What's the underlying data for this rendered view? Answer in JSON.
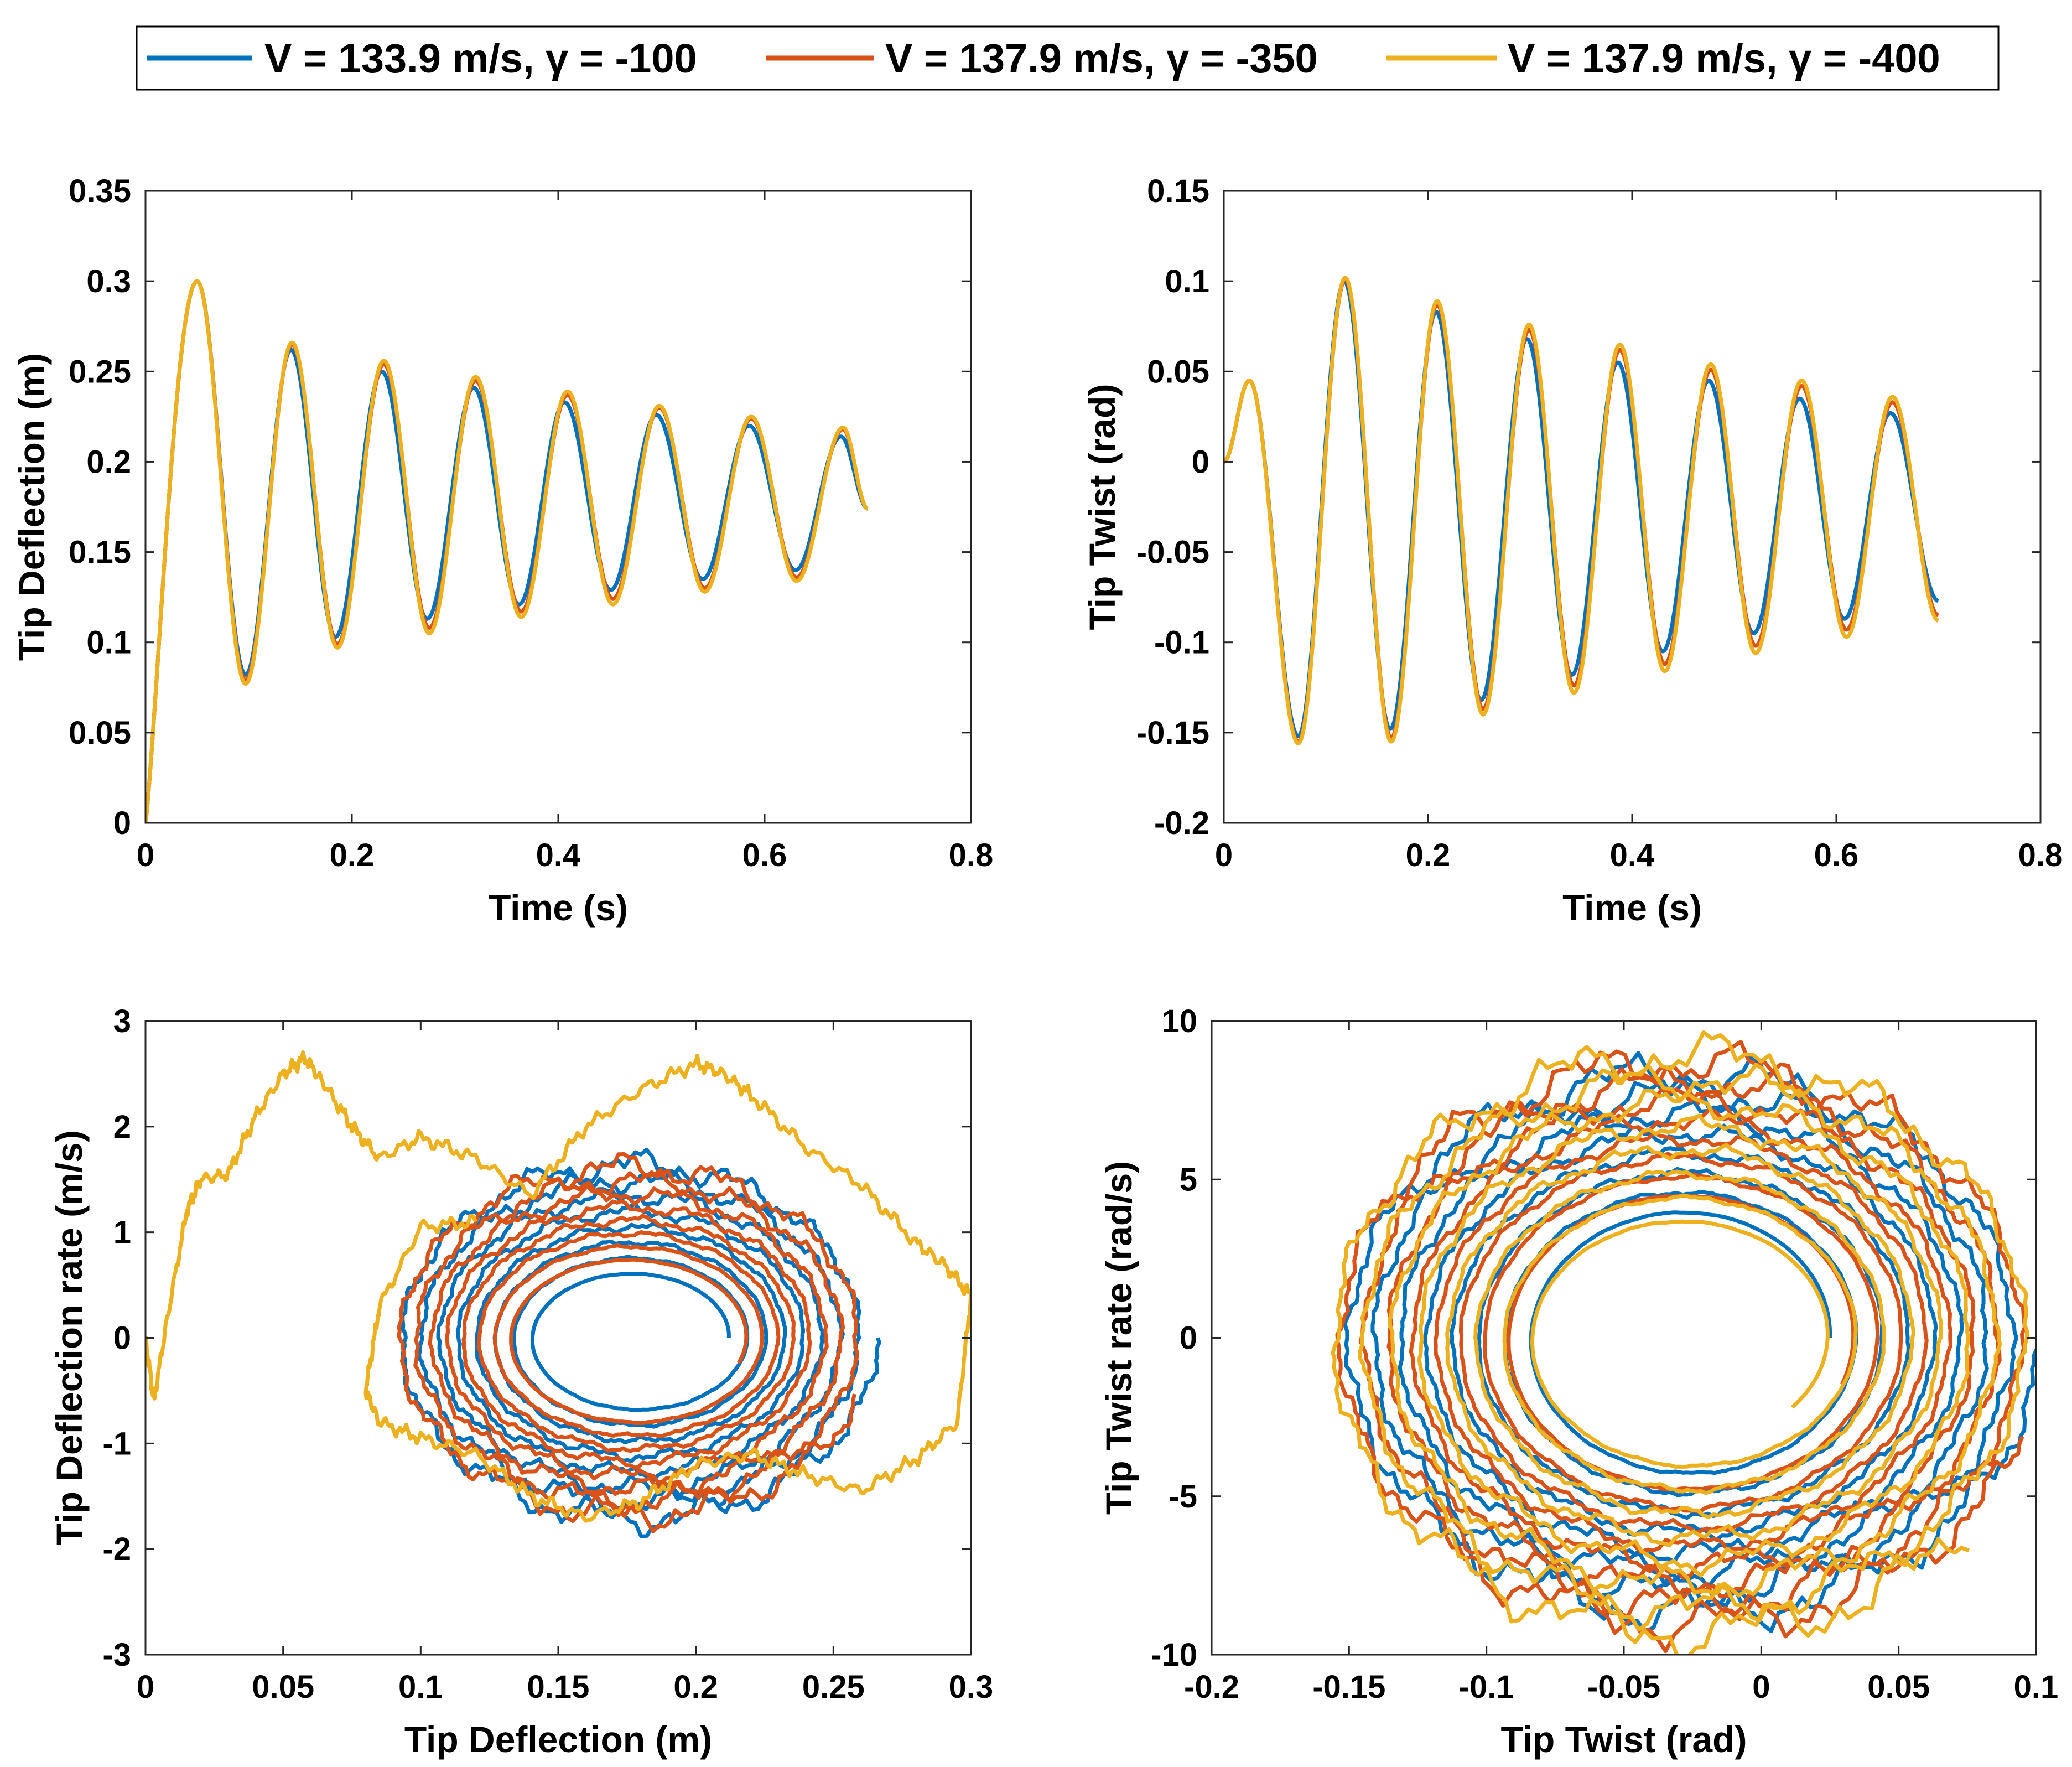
{
  "legend": {
    "entries": [
      {
        "label": "V = 133.9 m/s, γ = -100",
        "color": "#0072BD"
      },
      {
        "label": "V = 137.9 m/s, γ = -350",
        "color": "#D95319"
      },
      {
        "label": "V = 137.9 m/s, γ = -400",
        "color": "#EDB120"
      }
    ]
  },
  "chart_data": [
    {
      "type": "line",
      "title": "",
      "xlabel": "Time (s)",
      "ylabel": "Tip Deflection (m)",
      "xlim": [
        0,
        0.8
      ],
      "ylim": [
        0,
        0.35
      ],
      "xticks": [
        0,
        0.2,
        0.4,
        0.6,
        0.8
      ],
      "yticks": [
        0,
        0.05,
        0.1,
        0.15,
        0.2,
        0.25,
        0.3,
        0.35
      ],
      "xtick_labels": [
        "0",
        "0.2",
        "0.4",
        "0.6",
        "0.8"
      ],
      "ytick_labels": [
        "0",
        "0.05",
        "0.1",
        "0.15",
        "0.2",
        "0.25",
        "0.3",
        "0.35"
      ],
      "grid": false,
      "series": [
        {
          "name": "V = 133.9 m/s, γ = -100",
          "color": "#0072BD",
          "x": [
            0,
            0.05,
            0.097,
            0.141,
            0.184,
            0.229,
            0.273,
            0.318,
            0.362,
            0.406,
            0.451,
            0.495,
            0.54,
            0.585,
            0.63,
            0.674,
            0.7
          ],
          "y": [
            0,
            0.3,
            0.082,
            0.262,
            0.103,
            0.25,
            0.113,
            0.241,
            0.121,
            0.233,
            0.129,
            0.226,
            0.135,
            0.22,
            0.14,
            0.214,
            0.174
          ]
        },
        {
          "name": "V = 137.9 m/s, γ = -350",
          "color": "#D95319",
          "x": [
            0,
            0.05,
            0.097,
            0.142,
            0.186,
            0.231,
            0.275,
            0.32,
            0.364,
            0.409,
            0.453,
            0.498,
            0.542,
            0.587,
            0.631,
            0.676,
            0.7
          ],
          "y": [
            0,
            0.3,
            0.079,
            0.265,
            0.099,
            0.254,
            0.108,
            0.245,
            0.117,
            0.237,
            0.124,
            0.23,
            0.13,
            0.224,
            0.136,
            0.218,
            0.174
          ]
        },
        {
          "name": "V = 137.9 m/s, γ = -400",
          "color": "#EDB120",
          "x": [
            0,
            0.05,
            0.097,
            0.142,
            0.186,
            0.231,
            0.275,
            0.32,
            0.364,
            0.409,
            0.453,
            0.498,
            0.542,
            0.587,
            0.631,
            0.676,
            0.7
          ],
          "y": [
            0,
            0.3,
            0.077,
            0.266,
            0.097,
            0.256,
            0.105,
            0.247,
            0.114,
            0.239,
            0.121,
            0.231,
            0.128,
            0.225,
            0.134,
            0.219,
            0.174
          ]
        }
      ]
    },
    {
      "type": "line",
      "title": "",
      "xlabel": "Time (s)",
      "ylabel": "Tip Twist (rad)",
      "xlim": [
        0,
        0.8
      ],
      "ylim": [
        -0.2,
        0.15
      ],
      "xticks": [
        0,
        0.2,
        0.4,
        0.6,
        0.8
      ],
      "yticks": [
        -0.2,
        -0.15,
        -0.1,
        -0.05,
        0,
        0.05,
        0.1,
        0.15
      ],
      "xtick_labels": [
        "0",
        "0.2",
        "0.4",
        "0.6",
        "0.8"
      ],
      "ytick_labels": [
        "-0.2",
        "-0.15",
        "-0.1",
        "-0.05",
        "0",
        "0.05",
        "0.1",
        "0.15"
      ],
      "grid": false,
      "series": [
        {
          "name": "V = 133.9 m/s, γ = -100",
          "color": "#0072BD",
          "x": [
            0,
            0.025,
            0.073,
            0.118,
            0.163,
            0.208,
            0.252,
            0.297,
            0.341,
            0.386,
            0.43,
            0.475,
            0.519,
            0.564,
            0.608,
            0.653,
            0.7
          ],
          "y": [
            0,
            0.045,
            -0.152,
            0.1,
            -0.148,
            0.083,
            -0.132,
            0.068,
            -0.118,
            0.055,
            -0.105,
            0.045,
            -0.095,
            0.035,
            -0.087,
            0.027,
            -0.077
          ]
        },
        {
          "name": "V = 137.9 m/s, γ = -350",
          "color": "#D95319",
          "x": [
            0,
            0.025,
            0.073,
            0.119,
            0.164,
            0.209,
            0.254,
            0.299,
            0.343,
            0.388,
            0.432,
            0.477,
            0.521,
            0.566,
            0.61,
            0.655,
            0.7
          ],
          "y": [
            0,
            0.045,
            -0.155,
            0.101,
            -0.153,
            0.087,
            -0.137,
            0.073,
            -0.124,
            0.062,
            -0.112,
            0.051,
            -0.102,
            0.042,
            -0.093,
            0.033,
            -0.085
          ]
        },
        {
          "name": "V = 137.9 m/s, γ = -400",
          "color": "#EDB120",
          "x": [
            0,
            0.025,
            0.073,
            0.119,
            0.164,
            0.209,
            0.254,
            0.299,
            0.343,
            0.388,
            0.432,
            0.477,
            0.521,
            0.566,
            0.61,
            0.655,
            0.7
          ],
          "y": [
            0,
            0.045,
            -0.156,
            0.102,
            -0.155,
            0.089,
            -0.14,
            0.076,
            -0.128,
            0.065,
            -0.116,
            0.054,
            -0.106,
            0.045,
            -0.097,
            0.036,
            -0.088
          ]
        }
      ]
    },
    {
      "type": "line",
      "title": "",
      "xlabel": "Tip Deflection (m)",
      "ylabel": "Tip Deflection rate (m/s)",
      "xlim": [
        0,
        0.3
      ],
      "ylim": [
        -3,
        3
      ],
      "xticks": [
        0,
        0.05,
        0.1,
        0.15,
        0.2,
        0.25,
        0.3
      ],
      "yticks": [
        -3,
        -2,
        -1,
        0,
        1,
        2,
        3
      ],
      "xtick_labels": [
        "0",
        "0.05",
        "0.1",
        "0.15",
        "0.2",
        "0.25",
        "0.3"
      ],
      "ytick_labels": [
        "-3",
        "-2",
        "-1",
        "0",
        "1",
        "2",
        "3"
      ],
      "grid": false,
      "phase_portrait": true,
      "series": [
        {
          "name": "V = 133.9 m/s, γ = -100",
          "color": "#0072BD",
          "center": [
            0.178,
            0
          ],
          "x_amplitude": [
            0.088,
            0.034
          ],
          "y_amplitude": [
            1.75,
            0.57
          ],
          "turns": 8
        },
        {
          "name": "V = 137.9 m/s, γ = -350",
          "color": "#D95319",
          "center": [
            0.177,
            0
          ],
          "x_amplitude": [
            0.087,
            0.041
          ],
          "y_amplitude": [
            1.7,
            0.7
          ],
          "turns": 8
        },
        {
          "name": "V = 137.9 m/s, γ = -400",
          "color": "#EDB120",
          "x": [
            0,
            0.003,
            0.008,
            0.015,
            0.02,
            0.03,
            0.04,
            0.05,
            0.058,
            0.065,
            0.075,
            0.085,
            0.1,
            0.12,
            0.14,
            0.16,
            0.18,
            0.2,
            0.21,
            0.22,
            0.24,
            0.26,
            0.28,
            0.29,
            0.3,
            0.295,
            0.28,
            0.26,
            0.24,
            0.22,
            0.2,
            0.18,
            0.16,
            0.14,
            0.12,
            0.1,
            0.085,
            0.08,
            0.085,
            0.1,
            0.12
          ],
          "y": [
            0,
            -0.6,
            0.2,
            1.2,
            1.5,
            1.55,
            2.1,
            2.5,
            2.65,
            2.4,
            2.0,
            1.7,
            1.9,
            1.7,
            1.35,
            2.0,
            2.35,
            2.6,
            2.5,
            2.3,
            1.8,
            1.45,
            0.9,
            0.7,
            0.4,
            -0.8,
            -1.15,
            -1.45,
            -1.3,
            -1.1,
            -1.2,
            -1.55,
            -1.7,
            -1.5,
            -1.1,
            -0.95,
            -0.8,
            -0.5,
            0.3,
            1.05,
            1.1
          ]
        }
      ]
    },
    {
      "type": "line",
      "title": "",
      "xlabel": "Tip Twist (rad)",
      "ylabel": "Tip Twist rate (rad/s)",
      "xlim": [
        -0.2,
        0.1
      ],
      "ylim": [
        -10,
        10
      ],
      "xticks": [
        -0.2,
        -0.15,
        -0.1,
        -0.05,
        0,
        0.05,
        0.1
      ],
      "yticks": [
        -10,
        -5,
        0,
        5,
        10
      ],
      "xtick_labels": [
        "-0.2",
        "-0.15",
        "-0.1",
        "-0.05",
        "0",
        "0.05",
        "0.1"
      ],
      "ytick_labels": [
        "-10",
        "-5",
        "0",
        "5",
        "10"
      ],
      "grid": false,
      "phase_portrait": true,
      "series": [
        {
          "name": "V = 133.9 m/s, γ = -100",
          "color": "#0072BD",
          "center": [
            -0.027,
            0
          ],
          "x_amplitude": [
            0.128,
            0.052
          ],
          "y_amplitude": [
            8.8,
            3.8
          ],
          "turns": 8
        },
        {
          "name": "V = 137.9 m/s, γ = -350",
          "color": "#D95319",
          "center": [
            -0.027,
            0
          ],
          "x_amplitude": [
            0.13,
            0.06
          ],
          "y_amplitude": [
            9.1,
            4.3
          ],
          "turns": 8
        },
        {
          "name": "V = 137.9 m/s, γ = -400",
          "color": "#EDB120",
          "center": [
            -0.027,
            0
          ],
          "x_amplitude": [
            0.132,
            0.05
          ],
          "y_amplitude": [
            9.4,
            3.4
          ],
          "turns": 8
        }
      ]
    }
  ]
}
